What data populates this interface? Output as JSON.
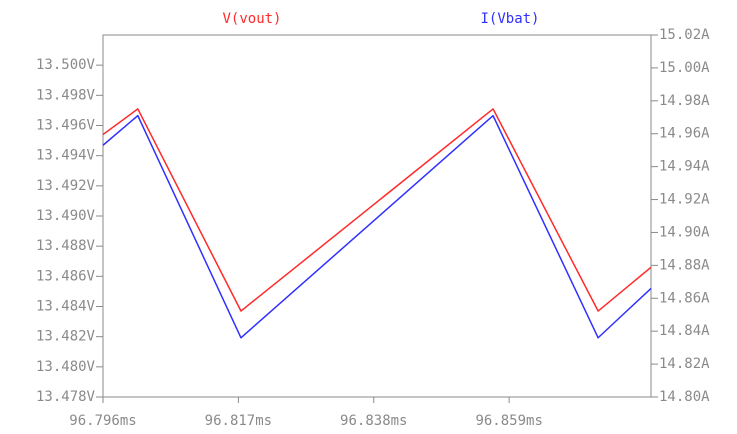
{
  "chart_data": {
    "type": "line",
    "x": [
      96.796,
      96.8014,
      96.8174,
      96.8565,
      96.8728,
      96.881
    ],
    "series": [
      {
        "name": "V(vout)",
        "color": "#ff2a2a",
        "values": [
          13.4954,
          13.4971,
          13.4837,
          13.4971,
          13.4837,
          13.4866
        ]
      },
      {
        "name": "I(Vbat)",
        "color": "#3030ff",
        "axis": "y2",
        "values": [
          14.953,
          14.971,
          14.836,
          14.971,
          14.836,
          14.866
        ]
      }
    ],
    "xlim": [
      96.796,
      96.881
    ],
    "xticks": [
      {
        "value": 96.796,
        "label": "96.796ms"
      },
      {
        "value": 96.817,
        "label": "96.817ms"
      },
      {
        "value": 96.838,
        "label": "96.838ms"
      },
      {
        "value": 96.859,
        "label": "96.859ms"
      }
    ],
    "ylim": [
      13.478,
      13.502
    ],
    "yticks": [
      {
        "value": 13.478,
        "label": "13.478V"
      },
      {
        "value": 13.48,
        "label": "13.480V"
      },
      {
        "value": 13.482,
        "label": "13.482V"
      },
      {
        "value": 13.484,
        "label": "13.484V"
      },
      {
        "value": 13.486,
        "label": "13.486V"
      },
      {
        "value": 13.488,
        "label": "13.488V"
      },
      {
        "value": 13.49,
        "label": "13.490V"
      },
      {
        "value": 13.492,
        "label": "13.492V"
      },
      {
        "value": 13.494,
        "label": "13.494V"
      },
      {
        "value": 13.496,
        "label": "13.496V"
      },
      {
        "value": 13.498,
        "label": "13.498V"
      },
      {
        "value": 13.5,
        "label": "13.500V"
      }
    ],
    "y2lim": [
      14.8,
      15.02
    ],
    "y2ticks": [
      {
        "value": 14.8,
        "label": "14.80A"
      },
      {
        "value": 14.82,
        "label": "14.82A"
      },
      {
        "value": 14.84,
        "label": "14.84A"
      },
      {
        "value": 14.86,
        "label": "14.86A"
      },
      {
        "value": 14.88,
        "label": "14.88A"
      },
      {
        "value": 14.9,
        "label": "14.90A"
      },
      {
        "value": 14.92,
        "label": "14.92A"
      },
      {
        "value": 14.94,
        "label": "14.94A"
      },
      {
        "value": 14.96,
        "label": "14.96A"
      },
      {
        "value": 14.98,
        "label": "14.98A"
      },
      {
        "value": 15.0,
        "label": "15.00A"
      },
      {
        "value": 15.02,
        "label": "15.02A"
      }
    ]
  }
}
